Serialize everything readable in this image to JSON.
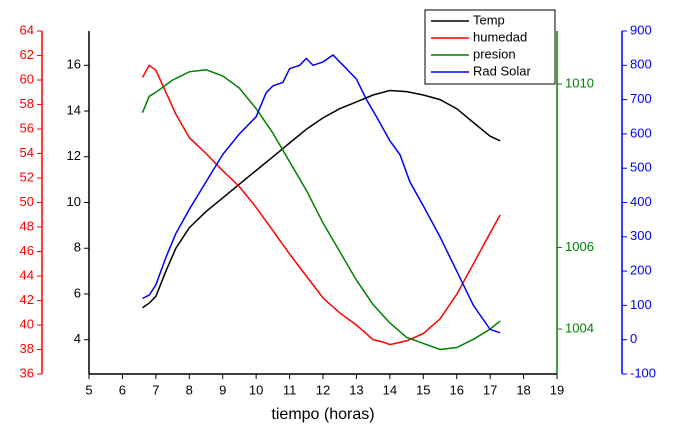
{
  "chart_data": {
    "type": "line",
    "x_label": "tiempo (horas)",
    "xlim": [
      5,
      19
    ],
    "xticks": [
      5,
      6,
      7,
      8,
      9,
      10,
      11,
      12,
      13,
      14,
      15,
      16,
      17,
      18,
      19
    ],
    "ylim": [
      2.5,
      17.5
    ],
    "yticks": [
      4,
      6,
      8,
      10,
      12,
      14,
      16
    ],
    "y2lim": [
      36,
      64
    ],
    "y2ticks": [
      36,
      38,
      40,
      42,
      44,
      46,
      48,
      50,
      52,
      54,
      56,
      58,
      60,
      62,
      64
    ],
    "y3lim": [
      1002.9,
      1011.3
    ],
    "y3ticks": [
      1004,
      1006,
      1010
    ],
    "y4lim": [
      -100,
      900
    ],
    "y4ticks": [
      -100,
      0,
      100,
      200,
      300,
      400,
      500,
      600,
      700,
      800,
      900
    ],
    "legend": "upper right",
    "series": [
      {
        "name": "Temp",
        "color": "#000000",
        "axis": "y",
        "x": [
          6.6,
          6.8,
          7.0,
          7.3,
          7.6,
          8.0,
          8.5,
          9,
          9.5,
          10,
          10.5,
          11,
          11.5,
          12,
          12.5,
          13,
          13.5,
          14,
          14.5,
          15,
          15.5,
          16,
          16.5,
          17,
          17.3
        ],
        "values": [
          5.4,
          5.6,
          5.9,
          7.0,
          8.0,
          8.9,
          9.6,
          10.2,
          10.8,
          11.4,
          12.0,
          12.6,
          13.2,
          13.7,
          14.1,
          14.4,
          14.7,
          14.9,
          14.85,
          14.7,
          14.5,
          14.1,
          13.5,
          12.9,
          12.7
        ]
      },
      {
        "name": "humedad",
        "color": "#ff0000",
        "axis": "y2",
        "x": [
          6.6,
          6.8,
          7.0,
          7.3,
          7.6,
          8.0,
          8.5,
          9,
          9.5,
          10,
          10.5,
          11,
          11.5,
          12,
          12.5,
          13,
          13.5,
          13.8,
          14,
          14.5,
          15,
          15.5,
          16,
          16.5,
          17,
          17.3
        ],
        "values": [
          60.2,
          61.2,
          60.8,
          59,
          57.2,
          55.3,
          54,
          52.6,
          51.3,
          49.6,
          47.7,
          45.8,
          44,
          42.2,
          41,
          40,
          38.8,
          38.6,
          38.4,
          38.7,
          39.3,
          40.5,
          42.5,
          45,
          47.5,
          49
        ]
      },
      {
        "name": "presion",
        "color": "#008000",
        "axis": "y3",
        "x": [
          6.6,
          6.8,
          7.0,
          7.5,
          8.0,
          8.5,
          9,
          9.5,
          10,
          10.5,
          11,
          11.5,
          12,
          12.5,
          13,
          13.5,
          14,
          14.5,
          15,
          15.5,
          16,
          16.5,
          17,
          17.3
        ],
        "values": [
          1009.3,
          1009.7,
          1009.8,
          1010.1,
          1010.3,
          1010.35,
          1010.2,
          1009.9,
          1009.4,
          1008.8,
          1008.1,
          1007.4,
          1006.6,
          1005.9,
          1005.2,
          1004.6,
          1004.15,
          1003.8,
          1003.65,
          1003.5,
          1003.55,
          1003.75,
          1004.0,
          1004.2
        ]
      },
      {
        "name": "Rad Solar",
        "color": "#0000ff",
        "axis": "y4",
        "x": [
          6.6,
          6.8,
          7.0,
          7.3,
          7.6,
          8.0,
          8.5,
          9,
          9.5,
          10,
          10.3,
          10.5,
          10.8,
          11,
          11.3,
          11.5,
          11.7,
          12,
          12.3,
          12.6,
          13,
          13.3,
          13.6,
          14,
          14.3,
          14.6,
          15,
          15.5,
          16,
          16.5,
          17,
          17.3
        ],
        "values": [
          120,
          130,
          160,
          240,
          310,
          380,
          460,
          540,
          600,
          650,
          720,
          740,
          750,
          790,
          800,
          820,
          800,
          810,
          830,
          800,
          760,
          700,
          650,
          580,
          540,
          460,
          390,
          300,
          200,
          100,
          30,
          20
        ]
      }
    ]
  }
}
